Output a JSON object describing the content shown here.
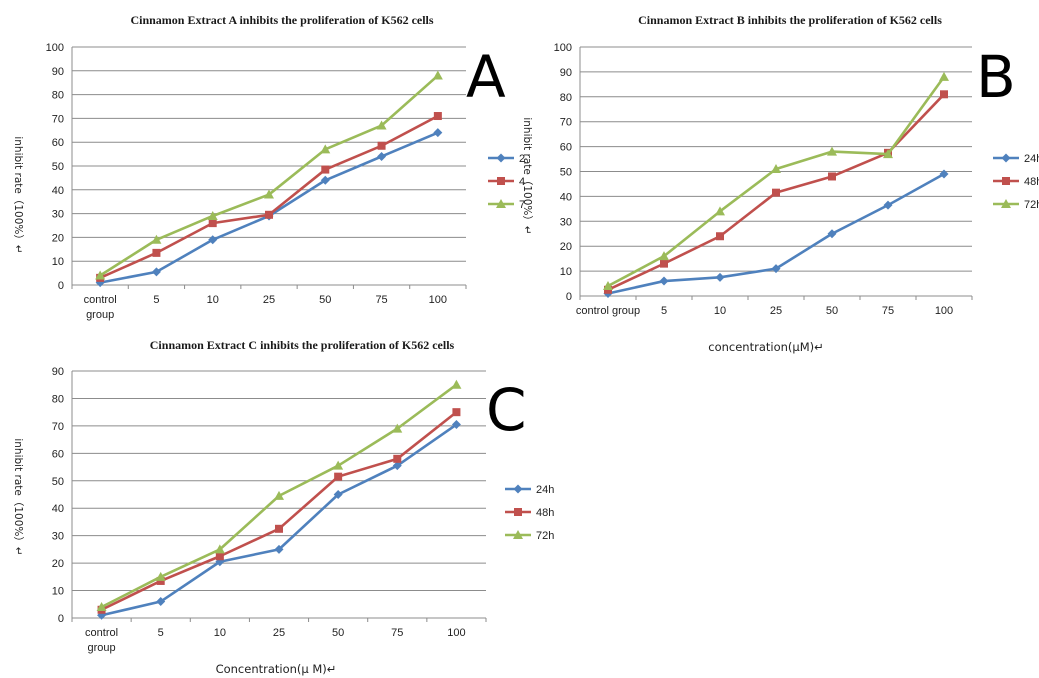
{
  "chart_data": [
    {
      "type": "line",
      "panel_label": "A",
      "title": "Cinnamon Extract A inhibits the proliferation of K562 cells",
      "ylabel": "inhibit rate（100%）↵",
      "xlabel": "",
      "categories": [
        "control group",
        "5",
        "10",
        "25",
        "50",
        "75",
        "100"
      ],
      "ylim": [
        0,
        100
      ],
      "yticks": [
        "0",
        "10",
        "20",
        "30",
        "40",
        "50",
        "60",
        "70",
        "80",
        "90",
        "100"
      ],
      "grid": true,
      "legend": "right",
      "series": [
        {
          "name": "2",
          "color": "#4f81bd",
          "marker": "diamond",
          "values": [
            1,
            5.5,
            19,
            29,
            44,
            54,
            64
          ]
        },
        {
          "name": "4",
          "color": "#c0504d",
          "marker": "square",
          "values": [
            3,
            13.5,
            26,
            29.5,
            48.5,
            58.5,
            71
          ]
        },
        {
          "name": "7",
          "color": "#9bbb59",
          "marker": "triangle",
          "values": [
            4,
            19,
            29,
            38,
            57,
            67,
            88
          ]
        }
      ]
    },
    {
      "type": "line",
      "panel_label": "B",
      "title": "Cinnamon Extract B inhibits the proliferation of K562 cells",
      "ylabel": "inhibit rate（100%）↵",
      "xlabel": "concentration(μM)↵",
      "categories": [
        "control group",
        "5",
        "10",
        "25",
        "50",
        "75",
        "100"
      ],
      "ylim": [
        0,
        100
      ],
      "yticks": [
        "0",
        "10",
        "20",
        "30",
        "40",
        "50",
        "60",
        "70",
        "80",
        "90",
        "100"
      ],
      "grid": true,
      "legend": "right",
      "series": [
        {
          "name": "24h",
          "color": "#4f81bd",
          "marker": "diamond",
          "values": [
            1,
            6,
            7.5,
            11,
            25,
            36.5,
            49
          ]
        },
        {
          "name": "48h",
          "color": "#c0504d",
          "marker": "square",
          "values": [
            2.5,
            13,
            24,
            41.5,
            48,
            57.5,
            81
          ]
        },
        {
          "name": "72h",
          "color": "#9bbb59",
          "marker": "triangle",
          "values": [
            4,
            16,
            34,
            51,
            58,
            57,
            88
          ]
        }
      ]
    },
    {
      "type": "line",
      "panel_label": "C",
      "title": "Cinnamon Extract C inhibits the proliferation of K562 cells",
      "ylabel": "inhibit rate（100%）↵",
      "xlabel": "Concentration(μ M)↵",
      "categories": [
        "control group",
        "5",
        "10",
        "25",
        "50",
        "75",
        "100"
      ],
      "ylim": [
        0,
        90
      ],
      "yticks": [
        "0",
        "10",
        "20",
        "30",
        "40",
        "50",
        "60",
        "70",
        "80",
        "90"
      ],
      "grid": true,
      "legend": "right",
      "series": [
        {
          "name": "24h",
          "color": "#4f81bd",
          "marker": "diamond",
          "values": [
            1,
            6,
            20.5,
            25,
            45,
            55.5,
            70.5
          ]
        },
        {
          "name": "48h",
          "color": "#c0504d",
          "marker": "square",
          "values": [
            3,
            13.5,
            22.5,
            32.5,
            51.5,
            58,
            75
          ]
        },
        {
          "name": "72h",
          "color": "#9bbb59",
          "marker": "triangle",
          "values": [
            4,
            15,
            25,
            44.5,
            55.5,
            69,
            85
          ]
        }
      ]
    }
  ]
}
